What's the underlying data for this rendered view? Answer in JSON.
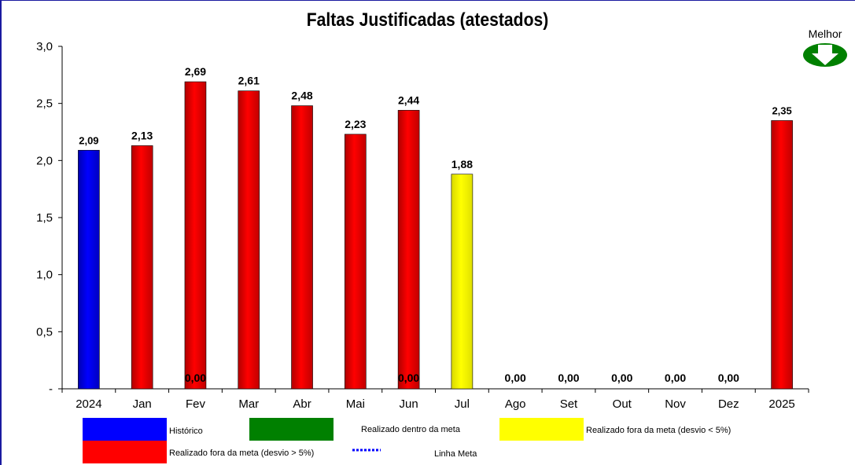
{
  "chart_data": {
    "type": "bar",
    "title": "Faltas Justificadas (atestados)",
    "better_indicator": {
      "label": "Melhor",
      "direction": "down",
      "color": "#008000"
    },
    "categories": [
      "2024",
      "Jan",
      "Fev",
      "Mar",
      "Abr",
      "Mai",
      "Jun",
      "Jul",
      "Ago",
      "Set",
      "Out",
      "Nov",
      "Dez",
      "2025"
    ],
    "values": [
      2.09,
      2.13,
      2.69,
      2.61,
      2.48,
      2.23,
      2.44,
      1.88,
      0,
      0,
      0,
      0,
      0,
      2.35
    ],
    "value_labels": [
      "2,09",
      "2,13",
      "2,69",
      "2,61",
      "2,48",
      "2,23",
      "2,44",
      "1,88",
      "0,00",
      "0,00",
      "0,00",
      "0,00",
      "0,00",
      "2,35"
    ],
    "bar_status": [
      "historico",
      "fora5",
      "fora5",
      "fora5",
      "fora5",
      "fora5",
      "fora5",
      "fora_lt5",
      "none",
      "none",
      "none",
      "none",
      "none",
      "fora5"
    ],
    "overlay_zero_labels": [
      {
        "category": "Fev",
        "text": "0,00"
      },
      {
        "category": "Jun",
        "text": "0,00"
      }
    ],
    "ylim": [
      0,
      3.0
    ],
    "yticks": [
      {
        "value": 0,
        "label": "-"
      },
      {
        "value": 0.5,
        "label": "0,5"
      },
      {
        "value": 1.0,
        "label": "1,0"
      },
      {
        "value": 1.5,
        "label": "1,5"
      },
      {
        "value": 2.0,
        "label": "2,0"
      },
      {
        "value": 2.5,
        "label": "2,5"
      },
      {
        "value": 3.0,
        "label": "3,0"
      }
    ],
    "grid": false,
    "legend_position": "bottom",
    "colors": {
      "historico": "#0000ff",
      "dentro": "#008000",
      "fora_lt5": "#ffff00",
      "fora5": "#ff0000",
      "meta": "#0000ff"
    },
    "legend": [
      {
        "key": "historico",
        "label": "Histórico",
        "kind": "swatch"
      },
      {
        "key": "dentro",
        "label": "Realizado dentro da meta",
        "kind": "swatch"
      },
      {
        "key": "fora_lt5",
        "label": "Realizado fora da meta (desvio < 5%)",
        "kind": "swatch"
      },
      {
        "key": "fora5",
        "label": "Realizado fora da meta (desvio > 5%)",
        "kind": "swatch"
      },
      {
        "key": "meta",
        "label": "Linha Meta",
        "kind": "dotted-line"
      }
    ]
  }
}
